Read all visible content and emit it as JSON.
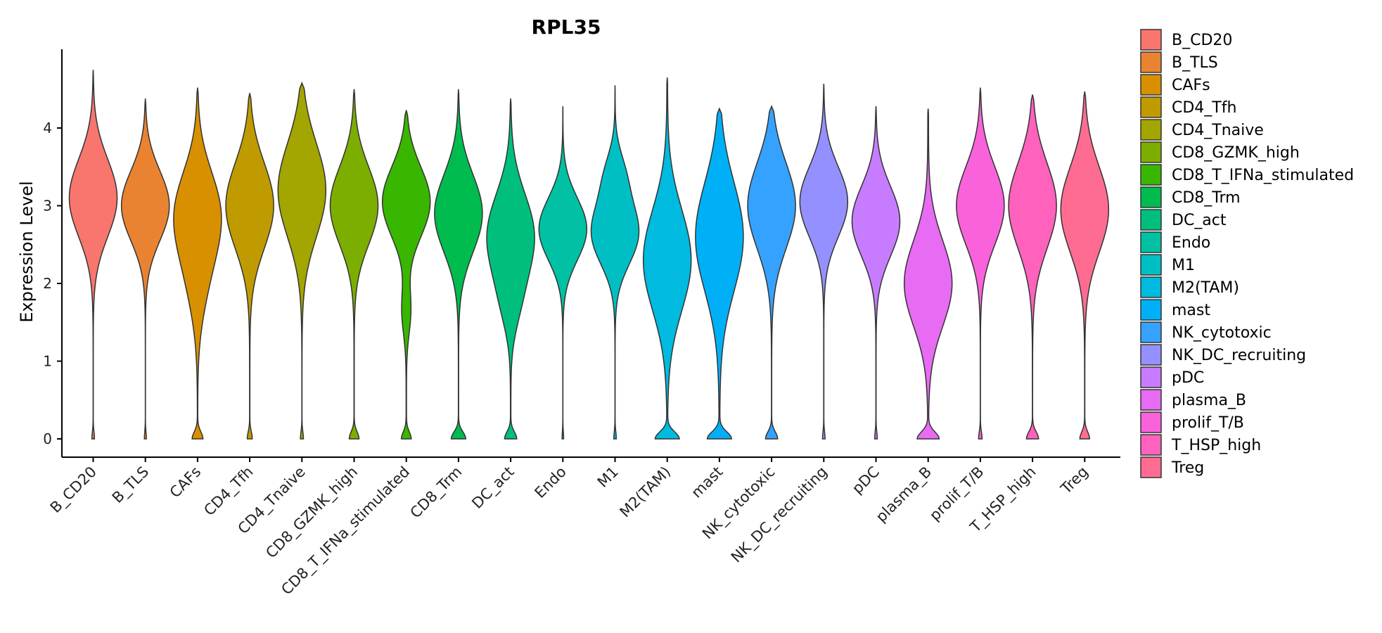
{
  "chart_data": {
    "type": "violin",
    "title": "RPL35",
    "ylabel": "Expression Level",
    "xlabel": "",
    "ylim": [
      -0.25,
      5.0
    ],
    "yticks": [
      0,
      1,
      2,
      3,
      4
    ],
    "categories": [
      "B_CD20",
      "B_TLS",
      "CAFs",
      "CD4_Tfh",
      "CD4_Tnaive",
      "CD8_GZMK_high",
      "CD8_T_IFNa_stimulated",
      "CD8_Trm",
      "DC_act",
      "Endo",
      "M1",
      "M2(TAM)",
      "mast",
      "NK_cytotoxic",
      "NK_DC_recruiting",
      "pDC",
      "plasma_B",
      "prolif_T/B",
      "T_HSP_high",
      "Treg"
    ],
    "colors": [
      "#F8766D",
      "#EA8331",
      "#D89000",
      "#C09B00",
      "#A3A500",
      "#7CAE00",
      "#39B600",
      "#00BB4E",
      "#00BF7D",
      "#00C1A3",
      "#00BFC4",
      "#00BAE0",
      "#00B0F6",
      "#35A2FF",
      "#9590FF",
      "#C77CFF",
      "#E76BF3",
      "#FA62DB",
      "#FF62BC",
      "#FF6C91"
    ],
    "legend": {
      "position": "right",
      "entries": [
        "B_CD20",
        "B_TLS",
        "CAFs",
        "CD4_Tfh",
        "CD4_Tnaive",
        "CD8_GZMK_high",
        "CD8_T_IFNa_stimulated",
        "CD8_Trm",
        "DC_act",
        "Endo",
        "M1",
        "M2(TAM)",
        "mast",
        "NK_cytotoxic",
        "NK_DC_recruiting",
        "pDC",
        "plasma_B",
        "prolif_T/B",
        "T_HSP_high",
        "Treg"
      ]
    },
    "series": [
      {
        "name": "B_CD20",
        "max": 4.75,
        "zero_weight": 0.05,
        "tail_weight": 0.06,
        "modes": [
          {
            "mu": 3.1,
            "sigma": 0.5,
            "w": 1.0
          }
        ]
      },
      {
        "name": "B_TLS",
        "max": 4.38,
        "zero_weight": 0.04,
        "tail_weight": 0.04,
        "modes": [
          {
            "mu": 3.0,
            "sigma": 0.45,
            "w": 1.0
          }
        ]
      },
      {
        "name": "CAFs",
        "max": 4.52,
        "zero_weight": 0.2,
        "tail_weight": 0.12,
        "modes": [
          {
            "mu": 2.9,
            "sigma": 0.55,
            "w": 0.85
          },
          {
            "mu": 2.0,
            "sigma": 0.5,
            "w": 0.25
          }
        ]
      },
      {
        "name": "CD4_Tfh",
        "max": 4.45,
        "zero_weight": 0.1,
        "tail_weight": 0.1,
        "modes": [
          {
            "mu": 3.0,
            "sigma": 0.55,
            "w": 1.0
          }
        ]
      },
      {
        "name": "CD4_Tnaive",
        "max": 4.58,
        "zero_weight": 0.06,
        "tail_weight": 0.06,
        "modes": [
          {
            "mu": 3.2,
            "sigma": 0.6,
            "w": 1.0
          }
        ]
      },
      {
        "name": "CD8_GZMK_high",
        "max": 4.5,
        "zero_weight": 0.2,
        "tail_weight": 0.1,
        "modes": [
          {
            "mu": 3.0,
            "sigma": 0.5,
            "w": 1.0
          }
        ]
      },
      {
        "name": "CD8_T_IFNa_stimulated",
        "max": 4.23,
        "zero_weight": 0.2,
        "tail_weight": 0.14,
        "modes": [
          {
            "mu": 3.05,
            "sigma": 0.45,
            "w": 1.0
          },
          {
            "mu": 1.65,
            "sigma": 0.3,
            "w": 0.18
          }
        ]
      },
      {
        "name": "CD8_Trm",
        "max": 4.5,
        "zero_weight": 0.3,
        "tail_weight": 0.1,
        "modes": [
          {
            "mu": 2.9,
            "sigma": 0.5,
            "w": 1.0
          }
        ]
      },
      {
        "name": "DC_act",
        "max": 4.38,
        "zero_weight": 0.25,
        "tail_weight": 0.15,
        "modes": [
          {
            "mu": 2.6,
            "sigma": 0.55,
            "w": 1.0
          },
          {
            "mu": 1.7,
            "sigma": 0.35,
            "w": 0.2
          }
        ]
      },
      {
        "name": "Endo",
        "max": 4.28,
        "zero_weight": 0.03,
        "tail_weight": 0.04,
        "modes": [
          {
            "mu": 2.7,
            "sigma": 0.4,
            "w": 1.0
          }
        ]
      },
      {
        "name": "M1",
        "max": 4.55,
        "zero_weight": 0.05,
        "tail_weight": 0.06,
        "modes": [
          {
            "mu": 2.65,
            "sigma": 0.4,
            "w": 1.0
          },
          {
            "mu": 3.4,
            "sigma": 0.3,
            "w": 0.35
          }
        ]
      },
      {
        "name": "M2(TAM)",
        "max": 4.65,
        "zero_weight": 0.45,
        "tail_weight": 0.2,
        "modes": [
          {
            "mu": 2.3,
            "sigma": 0.65,
            "w": 0.9
          }
        ]
      },
      {
        "name": "mast",
        "max": 4.25,
        "zero_weight": 0.5,
        "tail_weight": 0.25,
        "modes": [
          {
            "mu": 2.6,
            "sigma": 0.7,
            "w": 1.0
          }
        ]
      },
      {
        "name": "NK_cytotoxic",
        "max": 4.28,
        "zero_weight": 0.25,
        "tail_weight": 0.08,
        "modes": [
          {
            "mu": 3.0,
            "sigma": 0.55,
            "w": 1.0
          }
        ]
      },
      {
        "name": "NK_DC_recruiting",
        "max": 4.57,
        "zero_weight": 0.05,
        "tail_weight": 0.06,
        "modes": [
          {
            "mu": 3.05,
            "sigma": 0.45,
            "w": 1.0
          }
        ]
      },
      {
        "name": "pDC",
        "max": 4.28,
        "zero_weight": 0.05,
        "tail_weight": 0.08,
        "modes": [
          {
            "mu": 2.8,
            "sigma": 0.45,
            "w": 1.0
          }
        ]
      },
      {
        "name": "plasma_B",
        "max": 4.25,
        "zero_weight": 0.45,
        "tail_weight": 0.25,
        "modes": [
          {
            "mu": 2.0,
            "sigma": 0.55,
            "w": 1.0
          }
        ]
      },
      {
        "name": "prolif_T/B",
        "max": 4.52,
        "zero_weight": 0.07,
        "tail_weight": 0.06,
        "modes": [
          {
            "mu": 3.0,
            "sigma": 0.5,
            "w": 1.0
          }
        ]
      },
      {
        "name": "T_HSP_high",
        "max": 4.43,
        "zero_weight": 0.25,
        "tail_weight": 0.08,
        "modes": [
          {
            "mu": 3.0,
            "sigma": 0.55,
            "w": 1.0
          }
        ]
      },
      {
        "name": "Treg",
        "max": 4.47,
        "zero_weight": 0.2,
        "tail_weight": 0.08,
        "modes": [
          {
            "mu": 2.95,
            "sigma": 0.55,
            "w": 1.0
          }
        ]
      }
    ]
  }
}
